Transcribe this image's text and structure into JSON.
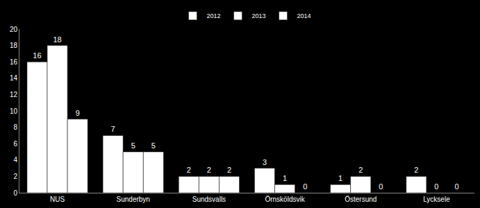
{
  "chart_data": {
    "type": "bar",
    "categories": [
      "NUS",
      "Sunderbyn",
      "Sundsvalls",
      "Örnsköldsvik",
      "Östersund",
      "Lycksele"
    ],
    "series": [
      {
        "name": "2012",
        "color": "#ffffff",
        "values": [
          16,
          7,
          2,
          3,
          1,
          2
        ]
      },
      {
        "name": "2013",
        "color": "#ffffff",
        "values": [
          18,
          5,
          2,
          1,
          2,
          0
        ]
      },
      {
        "name": "2014",
        "color": "#ffffff",
        "values": [
          9,
          5,
          2,
          0,
          0,
          0
        ]
      }
    ],
    "ylim": [
      0,
      20
    ],
    "yticks": [
      0,
      2,
      4,
      6,
      8,
      10,
      12,
      14,
      16,
      18,
      20
    ],
    "grid": false,
    "legend": "top",
    "data_labels": true
  }
}
